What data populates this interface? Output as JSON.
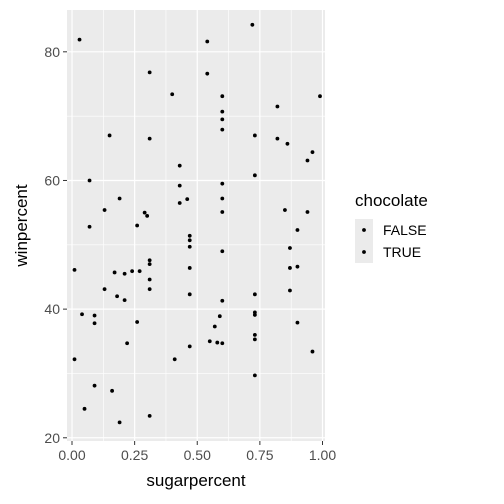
{
  "chart_data": {
    "type": "scatter",
    "xlabel": "sugarpercent",
    "ylabel": "winpercent",
    "xlim": [
      -0.02,
      1.01
    ],
    "ylim": [
      19.5,
      86.5
    ],
    "xticks": [
      0,
      0.25,
      0.5,
      0.75,
      1
    ],
    "xtick_labels": [
      "0.00",
      "0.25",
      "0.50",
      "0.75",
      "1.00"
    ],
    "yticks": [
      20,
      40,
      60,
      80
    ],
    "ytick_labels": [
      "20",
      "40",
      "60",
      "80"
    ],
    "grid": true,
    "legend": {
      "title": "chocolate",
      "position": "right",
      "entries": [
        "FALSE",
        "TRUE"
      ]
    },
    "point_color": "#000000",
    "panel_color": "#ebebeb",
    "grid_color": "#ffffff",
    "points": [
      {
        "x": 0.01,
        "y": 46.1
      },
      {
        "x": 0.01,
        "y": 32.2
      },
      {
        "x": 0.03,
        "y": 81.9
      },
      {
        "x": 0.04,
        "y": 39.2
      },
      {
        "x": 0.05,
        "y": 24.5
      },
      {
        "x": 0.07,
        "y": 60.0
      },
      {
        "x": 0.07,
        "y": 52.8
      },
      {
        "x": 0.09,
        "y": 39.0
      },
      {
        "x": 0.09,
        "y": 37.8
      },
      {
        "x": 0.09,
        "y": 28.1
      },
      {
        "x": 0.13,
        "y": 55.4
      },
      {
        "x": 0.13,
        "y": 43.1
      },
      {
        "x": 0.15,
        "y": 67.0
      },
      {
        "x": 0.16,
        "y": 27.3
      },
      {
        "x": 0.17,
        "y": 45.7
      },
      {
        "x": 0.18,
        "y": 42.0
      },
      {
        "x": 0.19,
        "y": 57.2
      },
      {
        "x": 0.19,
        "y": 22.4
      },
      {
        "x": 0.21,
        "y": 45.5
      },
      {
        "x": 0.21,
        "y": 41.4
      },
      {
        "x": 0.22,
        "y": 34.7
      },
      {
        "x": 0.24,
        "y": 45.9
      },
      {
        "x": 0.26,
        "y": 53.0
      },
      {
        "x": 0.26,
        "y": 38.0
      },
      {
        "x": 0.27,
        "y": 45.9
      },
      {
        "x": 0.29,
        "y": 55.0
      },
      {
        "x": 0.3,
        "y": 54.5
      },
      {
        "x": 0.31,
        "y": 76.8
      },
      {
        "x": 0.31,
        "y": 66.5
      },
      {
        "x": 0.31,
        "y": 47.6
      },
      {
        "x": 0.31,
        "y": 47.0
      },
      {
        "x": 0.31,
        "y": 44.6
      },
      {
        "x": 0.31,
        "y": 43.1
      },
      {
        "x": 0.31,
        "y": 23.4
      },
      {
        "x": 0.4,
        "y": 73.4
      },
      {
        "x": 0.41,
        "y": 32.2
      },
      {
        "x": 0.43,
        "y": 62.3
      },
      {
        "x": 0.43,
        "y": 59.2
      },
      {
        "x": 0.43,
        "y": 56.5
      },
      {
        "x": 0.46,
        "y": 57.1
      },
      {
        "x": 0.47,
        "y": 51.4
      },
      {
        "x": 0.47,
        "y": 50.7
      },
      {
        "x": 0.47,
        "y": 49.7
      },
      {
        "x": 0.47,
        "y": 46.4
      },
      {
        "x": 0.47,
        "y": 42.3
      },
      {
        "x": 0.47,
        "y": 34.2
      },
      {
        "x": 0.54,
        "y": 81.6
      },
      {
        "x": 0.54,
        "y": 76.6
      },
      {
        "x": 0.55,
        "y": 35.0
      },
      {
        "x": 0.57,
        "y": 37.3
      },
      {
        "x": 0.58,
        "y": 34.8
      },
      {
        "x": 0.59,
        "y": 38.9
      },
      {
        "x": 0.6,
        "y": 73.1
      },
      {
        "x": 0.6,
        "y": 70.7
      },
      {
        "x": 0.6,
        "y": 69.5
      },
      {
        "x": 0.6,
        "y": 67.9
      },
      {
        "x": 0.6,
        "y": 59.5
      },
      {
        "x": 0.6,
        "y": 57.2
      },
      {
        "x": 0.6,
        "y": 55.1
      },
      {
        "x": 0.6,
        "y": 49.0
      },
      {
        "x": 0.6,
        "y": 41.3
      },
      {
        "x": 0.6,
        "y": 34.7
      },
      {
        "x": 0.72,
        "y": 84.2
      },
      {
        "x": 0.73,
        "y": 67.0
      },
      {
        "x": 0.73,
        "y": 60.8
      },
      {
        "x": 0.73,
        "y": 42.3
      },
      {
        "x": 0.73,
        "y": 39.5
      },
      {
        "x": 0.73,
        "y": 39.1
      },
      {
        "x": 0.73,
        "y": 36.0
      },
      {
        "x": 0.73,
        "y": 35.3
      },
      {
        "x": 0.73,
        "y": 29.7
      },
      {
        "x": 0.82,
        "y": 71.5
      },
      {
        "x": 0.82,
        "y": 66.5
      },
      {
        "x": 0.85,
        "y": 55.4
      },
      {
        "x": 0.86,
        "y": 65.7
      },
      {
        "x": 0.87,
        "y": 49.5
      },
      {
        "x": 0.87,
        "y": 46.4
      },
      {
        "x": 0.87,
        "y": 42.9
      },
      {
        "x": 0.9,
        "y": 52.3
      },
      {
        "x": 0.9,
        "y": 46.6
      },
      {
        "x": 0.9,
        "y": 37.9
      },
      {
        "x": 0.94,
        "y": 63.1
      },
      {
        "x": 0.94,
        "y": 55.1
      },
      {
        "x": 0.96,
        "y": 64.4
      },
      {
        "x": 0.96,
        "y": 33.4
      },
      {
        "x": 0.99,
        "y": 73.1
      }
    ]
  }
}
